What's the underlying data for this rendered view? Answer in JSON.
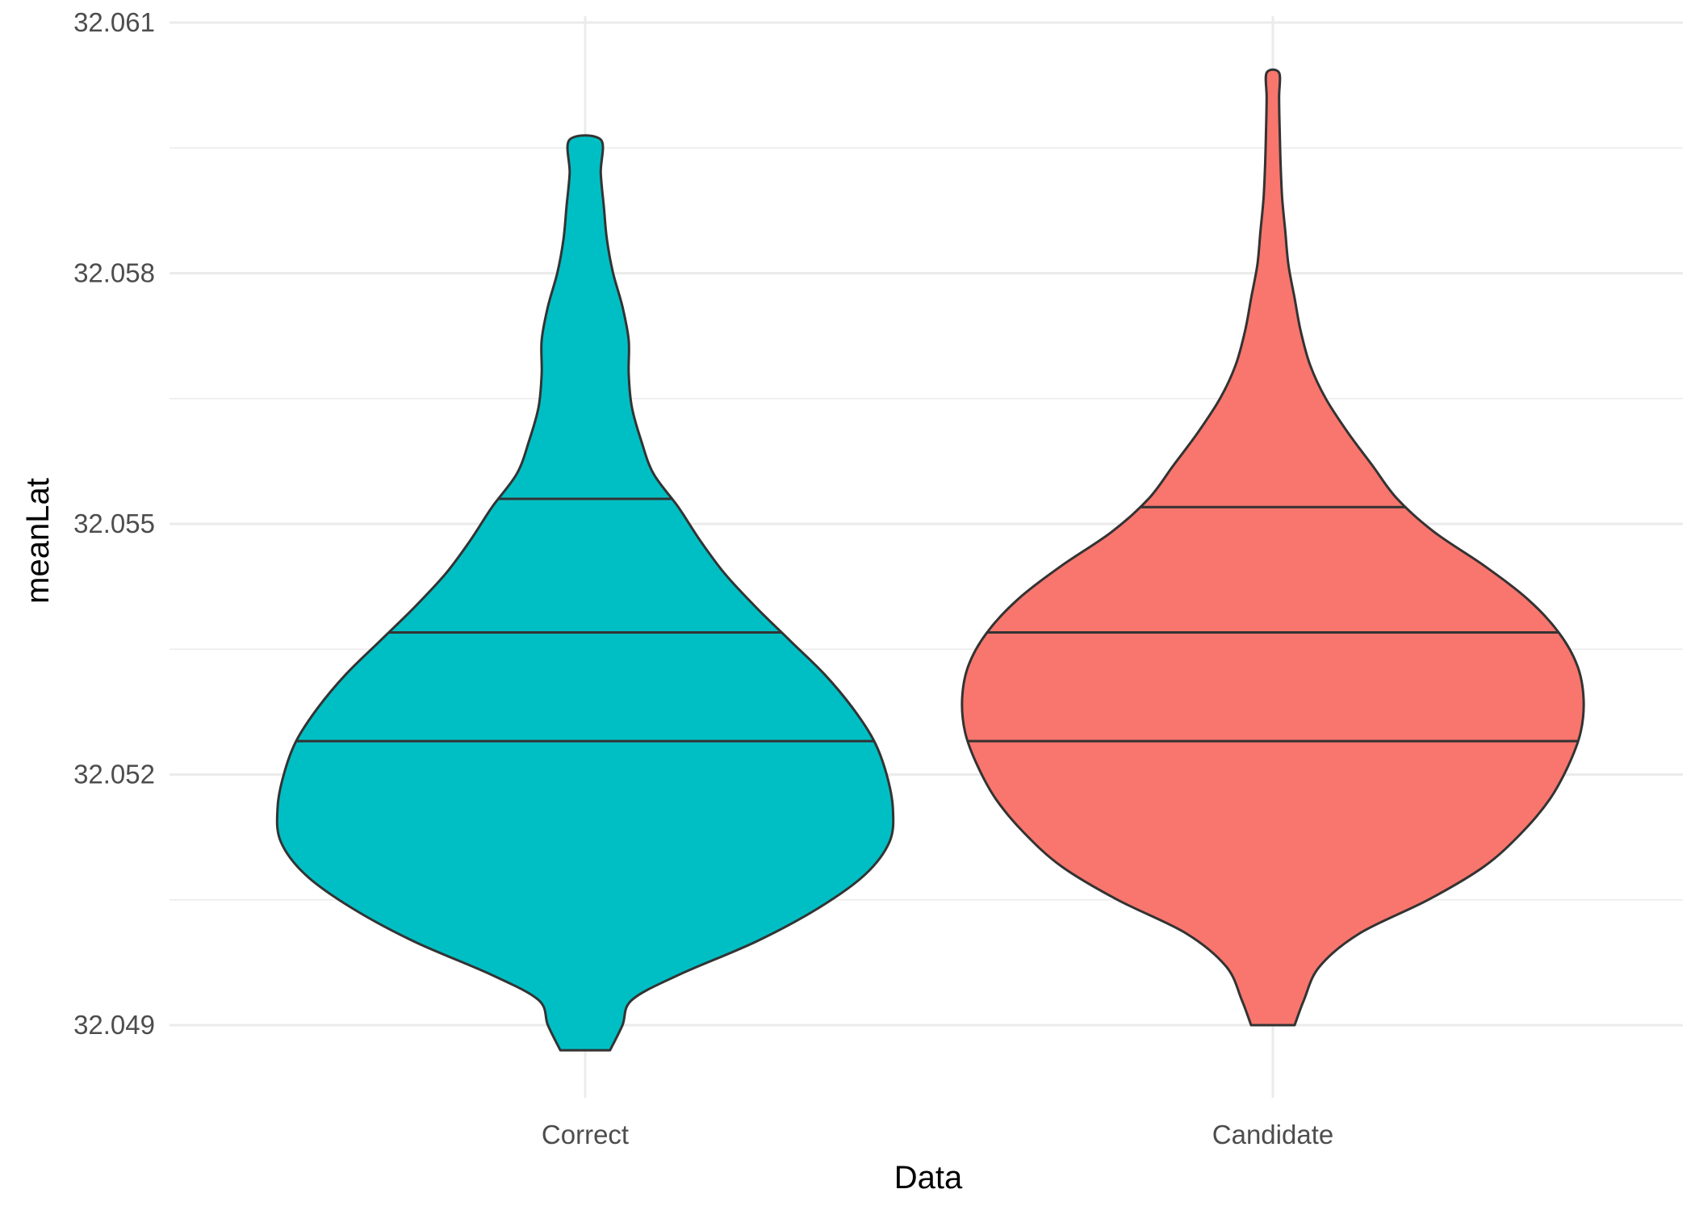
{
  "chart_data": {
    "type": "violin",
    "title": "",
    "xlabel": "Data",
    "ylabel": "meanLat",
    "categories": [
      "Correct",
      "Candidate"
    ],
    "ylim": [
      32.0484,
      32.0612
    ],
    "yticks": [
      32.049,
      32.052,
      32.055,
      32.058,
      32.061
    ],
    "ytick_labels": [
      "32.049",
      "32.052",
      "32.055",
      "32.058",
      "32.061"
    ],
    "grid": true,
    "legend": "none",
    "series": [
      {
        "category": "Correct",
        "fill": "#00BFC4",
        "min": 32.0487,
        "max": 32.0596,
        "quantiles": [
          32.0524,
          32.0537,
          32.0553
        ],
        "density_profile": [
          [
            32.0487,
            0.08
          ],
          [
            32.049,
            0.12
          ],
          [
            32.0493,
            0.15
          ],
          [
            32.0496,
            0.3
          ],
          [
            32.05,
            0.55
          ],
          [
            32.0504,
            0.75
          ],
          [
            32.0508,
            0.9
          ],
          [
            32.0512,
            0.98
          ],
          [
            32.0516,
            0.99
          ],
          [
            32.052,
            0.97
          ],
          [
            32.0524,
            0.93
          ],
          [
            32.0528,
            0.86
          ],
          [
            32.0532,
            0.77
          ],
          [
            32.0536,
            0.66
          ],
          [
            32.054,
            0.55
          ],
          [
            32.0544,
            0.45
          ],
          [
            32.0548,
            0.37
          ],
          [
            32.0552,
            0.3
          ],
          [
            32.0556,
            0.22
          ],
          [
            32.056,
            0.18
          ],
          [
            32.0564,
            0.15
          ],
          [
            32.0568,
            0.14
          ],
          [
            32.0572,
            0.14
          ],
          [
            32.0576,
            0.12
          ],
          [
            32.058,
            0.09
          ],
          [
            32.0584,
            0.07
          ],
          [
            32.0588,
            0.06
          ],
          [
            32.0592,
            0.05
          ],
          [
            32.0596,
            0.05
          ]
        ]
      },
      {
        "category": "Candidate",
        "fill": "#F8766D",
        "min": 32.049,
        "max": 32.0604,
        "quantiles": [
          32.0524,
          32.0537,
          32.0552
        ],
        "density_profile": [
          [
            32.049,
            0.07
          ],
          [
            32.0493,
            0.1
          ],
          [
            32.0497,
            0.15
          ],
          [
            32.0501,
            0.28
          ],
          [
            32.0505,
            0.5
          ],
          [
            32.0509,
            0.68
          ],
          [
            32.0513,
            0.8
          ],
          [
            32.0517,
            0.89
          ],
          [
            32.0521,
            0.95
          ],
          [
            32.0525,
            0.99
          ],
          [
            32.0529,
            1.0
          ],
          [
            32.0533,
            0.98
          ],
          [
            32.0537,
            0.92
          ],
          [
            32.0541,
            0.82
          ],
          [
            32.0545,
            0.68
          ],
          [
            32.0549,
            0.52
          ],
          [
            32.0553,
            0.4
          ],
          [
            32.0557,
            0.32
          ],
          [
            32.0561,
            0.24
          ],
          [
            32.0565,
            0.17
          ],
          [
            32.0569,
            0.12
          ],
          [
            32.0573,
            0.09
          ],
          [
            32.0577,
            0.07
          ],
          [
            32.0581,
            0.05
          ],
          [
            32.0585,
            0.04
          ],
          [
            32.0589,
            0.03
          ],
          [
            32.0593,
            0.025
          ],
          [
            32.0597,
            0.022
          ],
          [
            32.0601,
            0.02
          ],
          [
            32.0604,
            0.02
          ]
        ]
      }
    ]
  }
}
